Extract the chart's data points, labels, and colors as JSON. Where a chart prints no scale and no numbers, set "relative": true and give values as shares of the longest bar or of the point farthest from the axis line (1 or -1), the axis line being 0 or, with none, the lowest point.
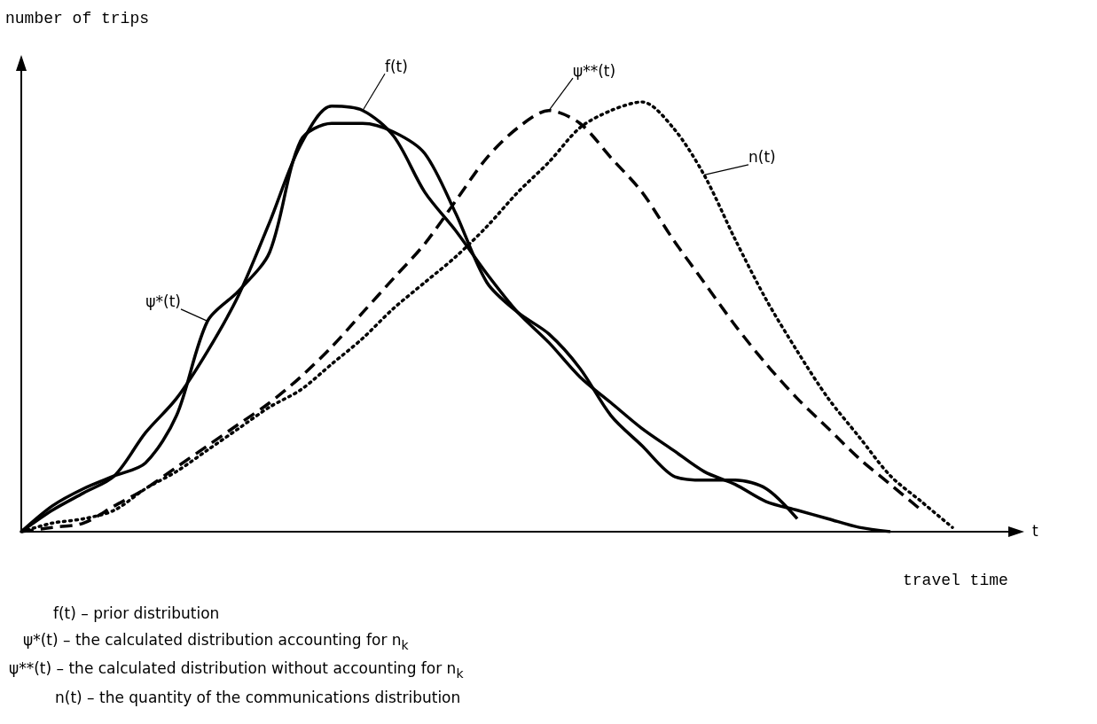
{
  "chart_data": {
    "type": "line",
    "relative": true,
    "xlabel": "travel time",
    "ylabel": "number of trips",
    "categories": [
      null,
      null,
      null,
      null,
      null,
      null,
      null,
      null,
      null,
      null,
      null,
      null,
      null,
      null,
      null,
      null,
      null,
      null,
      null,
      null,
      null,
      null,
      null,
      null,
      null,
      null,
      null,
      null,
      null,
      null,
      null
    ],
    "series": [
      {
        "name": "f(t)",
        "color": "#000000",
        "line_style": "solid",
        "values": [
          0,
          0.05,
          0.09,
          0.13,
          0.23,
          0.31,
          0.42,
          0.55,
          0.72,
          0.9,
          0.99,
          0.98,
          0.92,
          0.79,
          0.7,
          0.6,
          0.51,
          0.44,
          0.36,
          0.3,
          0.24,
          0.19,
          0.14,
          0.11,
          0.07,
          0.05,
          0.03,
          0.01,
          0,
          null,
          null
        ]
      },
      {
        "name": "ψ*(t)",
        "color": "#000000",
        "line_style": "solid",
        "values": [
          0,
          0.06,
          0.1,
          0.13,
          0.16,
          0.27,
          0.49,
          0.56,
          0.65,
          0.91,
          0.95,
          0.95,
          0.93,
          0.88,
          0.74,
          0.58,
          0.51,
          0.46,
          0.38,
          0.27,
          0.2,
          0.13,
          0.12,
          0.12,
          0.1,
          0.03,
          null,
          null,
          null,
          null,
          null
        ]
      },
      {
        "name": "ψ**(t)",
        "color": "#000000",
        "line_style": "dashed",
        "values": [
          0,
          0.01,
          0.02,
          0.06,
          0.1,
          0.15,
          0.2,
          0.25,
          0.3,
          0.36,
          0.43,
          0.51,
          0.59,
          0.67,
          0.77,
          0.87,
          0.94,
          0.98,
          0.95,
          0.87,
          0.79,
          0.68,
          0.58,
          0.48,
          0.39,
          0.31,
          0.24,
          0.17,
          0.11,
          0.05,
          null
        ]
      },
      {
        "name": "n(t)",
        "color": "#000000",
        "line_style": "dotted",
        "values": [
          0,
          0.02,
          0.03,
          0.05,
          0.1,
          0.14,
          0.19,
          0.24,
          0.29,
          0.33,
          0.39,
          0.45,
          0.52,
          0.58,
          0.64,
          0.71,
          0.79,
          0.86,
          0.94,
          0.98,
          1,
          0.94,
          0.83,
          0.68,
          0.54,
          0.42,
          0.31,
          0.22,
          0.13,
          0.07,
          0.01
        ]
      }
    ],
    "marker": "none",
    "legend": false,
    "grid": false,
    "annotations": [
      "t",
      "f(t) – prior distribution",
      "ψ*(t) – the calculated distribution accounting for n$_{k}$",
      "ψ**(t) – the calculated distribution without accounting for n$_{k}$",
      "n(t) – the quantity of the communications distribution"
    ]
  }
}
